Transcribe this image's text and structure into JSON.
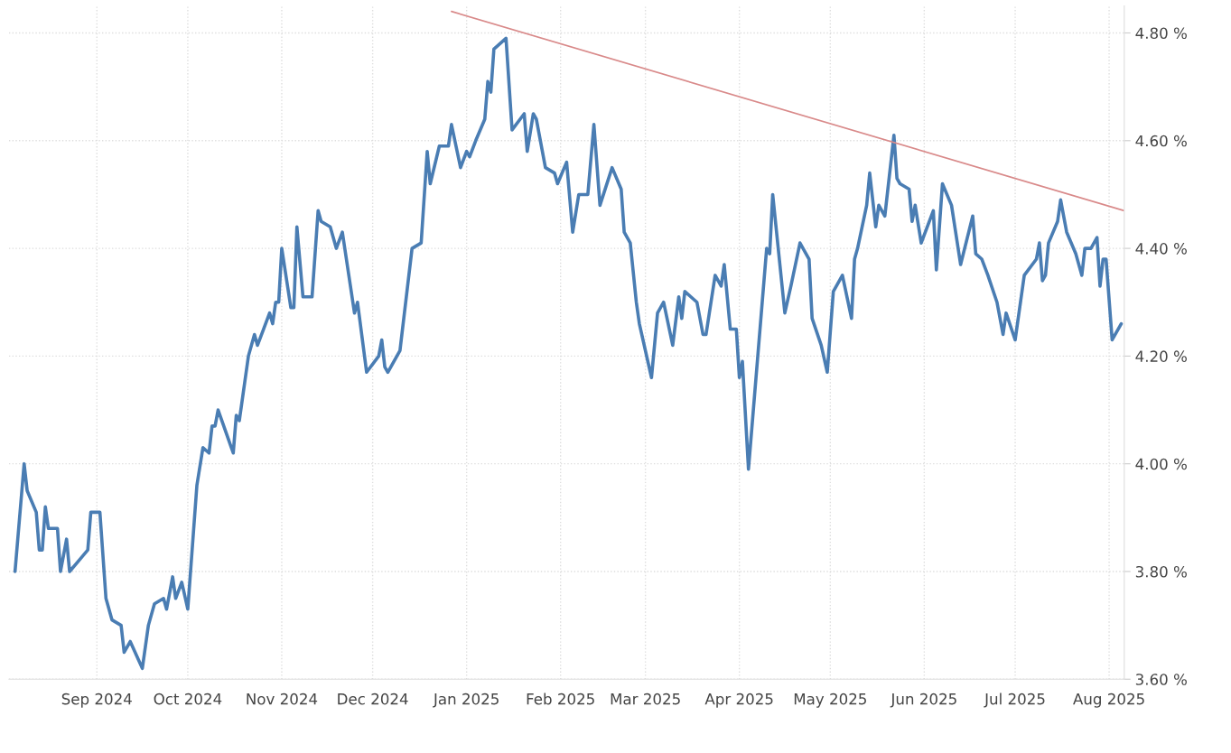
{
  "chart_data": {
    "type": "line",
    "xlim": [
      "2024-08-03",
      "2025-08-06"
    ],
    "ylim": [
      3.6,
      4.85
    ],
    "xticks": [
      {
        "value": "2024-09-01",
        "label": "Sep 2024"
      },
      {
        "value": "2024-10-01",
        "label": "Oct 2024"
      },
      {
        "value": "2024-11-01",
        "label": "Nov 2024"
      },
      {
        "value": "2024-12-01",
        "label": "Dec 2024"
      },
      {
        "value": "2025-01-01",
        "label": "Jan 2025"
      },
      {
        "value": "2025-02-01",
        "label": "Feb 2025"
      },
      {
        "value": "2025-03-01",
        "label": "Mar 2025"
      },
      {
        "value": "2025-04-01",
        "label": "Apr 2025"
      },
      {
        "value": "2025-05-01",
        "label": "May 2025"
      },
      {
        "value": "2025-06-01",
        "label": "Jun 2025"
      },
      {
        "value": "2025-07-01",
        "label": "Jul 2025"
      },
      {
        "value": "2025-08-01",
        "label": "Aug 2025"
      }
    ],
    "yticks": [
      {
        "value": 3.6,
        "label": "3.60 %"
      },
      {
        "value": 3.8,
        "label": "3.80 %"
      },
      {
        "value": 4.0,
        "label": "4.00 %"
      },
      {
        "value": 4.2,
        "label": "4.20 %"
      },
      {
        "value": 4.4,
        "label": "4.40 %"
      },
      {
        "value": 4.6,
        "label": "4.60 %"
      },
      {
        "value": 4.8,
        "label": "4.80 %"
      }
    ],
    "grid": true,
    "series": [
      {
        "color": "#4a7db3",
        "x": [
          "2024-08-05",
          "2024-08-08",
          "2024-08-09",
          "2024-08-12",
          "2024-08-13",
          "2024-08-14",
          "2024-08-15",
          "2024-08-16",
          "2024-08-19",
          "2024-08-20",
          "2024-08-22",
          "2024-08-23",
          "2024-08-26",
          "2024-08-29",
          "2024-08-30",
          "2024-09-02",
          "2024-09-04",
          "2024-09-06",
          "2024-09-09",
          "2024-09-10",
          "2024-09-12",
          "2024-09-16",
          "2024-09-18",
          "2024-09-20",
          "2024-09-23",
          "2024-09-24",
          "2024-09-26",
          "2024-09-27",
          "2024-09-29",
          "2024-10-01",
          "2024-10-04",
          "2024-10-06",
          "2024-10-08",
          "2024-10-09",
          "2024-10-10",
          "2024-10-11",
          "2024-10-16",
          "2024-10-17",
          "2024-10-18",
          "2024-10-21",
          "2024-10-23",
          "2024-10-24",
          "2024-10-26",
          "2024-10-28",
          "2024-10-29",
          "2024-10-30",
          "2024-10-31",
          "2024-11-01",
          "2024-11-04",
          "2024-11-05",
          "2024-11-06",
          "2024-11-08",
          "2024-11-11",
          "2024-11-13",
          "2024-11-14",
          "2024-11-17",
          "2024-11-19",
          "2024-11-21",
          "2024-11-25",
          "2024-11-26",
          "2024-11-29",
          "2024-12-03",
          "2024-12-04",
          "2024-12-05",
          "2024-12-06",
          "2024-12-10",
          "2024-12-14",
          "2024-12-17",
          "2024-12-19",
          "2024-12-20",
          "2024-12-23",
          "2024-12-26",
          "2024-12-27",
          "2024-12-30",
          "2025-01-01",
          "2025-01-02",
          "2025-01-04",
          "2025-01-07",
          "2025-01-08",
          "2025-01-09",
          "2025-01-10",
          "2025-01-14",
          "2025-01-16",
          "2025-01-20",
          "2025-01-21",
          "2025-01-23",
          "2025-01-24",
          "2025-01-27",
          "2025-01-30",
          "2025-01-31",
          "2025-02-03",
          "2025-02-05",
          "2025-02-07",
          "2025-02-10",
          "2025-02-12",
          "2025-02-14",
          "2025-02-18",
          "2025-02-21",
          "2025-02-22",
          "2025-02-24",
          "2025-02-26",
          "2025-02-27",
          "2025-03-03",
          "2025-03-05",
          "2025-03-07",
          "2025-03-10",
          "2025-03-12",
          "2025-03-13",
          "2025-03-14",
          "2025-03-18",
          "2025-03-20",
          "2025-03-21",
          "2025-03-24",
          "2025-03-26",
          "2025-03-27",
          "2025-03-29",
          "2025-03-31",
          "2025-04-01",
          "2025-04-02",
          "2025-04-04",
          "2025-04-10",
          "2025-04-11",
          "2025-04-12",
          "2025-04-16",
          "2025-04-18",
          "2025-04-21",
          "2025-04-24",
          "2025-04-25",
          "2025-04-28",
          "2025-04-30",
          "2025-05-02",
          "2025-05-05",
          "2025-05-08",
          "2025-05-09",
          "2025-05-10",
          "2025-05-13",
          "2025-05-14",
          "2025-05-16",
          "2025-05-17",
          "2025-05-19",
          "2025-05-22",
          "2025-05-23",
          "2025-05-24",
          "2025-05-27",
          "2025-05-28",
          "2025-05-29",
          "2025-05-31",
          "2025-06-04",
          "2025-06-05",
          "2025-06-07",
          "2025-06-10",
          "2025-06-13",
          "2025-06-17",
          "2025-06-18",
          "2025-06-20",
          "2025-06-22",
          "2025-06-25",
          "2025-06-27",
          "2025-06-28",
          "2025-07-01",
          "2025-07-04",
          "2025-07-08",
          "2025-07-09",
          "2025-07-10",
          "2025-07-11",
          "2025-07-12",
          "2025-07-15",
          "2025-07-16",
          "2025-07-17",
          "2025-07-18",
          "2025-07-21",
          "2025-07-23",
          "2025-07-24",
          "2025-07-26",
          "2025-07-28",
          "2025-07-29",
          "2025-07-30",
          "2025-07-31",
          "2025-08-02",
          "2025-08-05"
        ],
        "values": [
          3.8,
          4.0,
          3.95,
          3.91,
          3.84,
          3.84,
          3.92,
          3.88,
          3.88,
          3.8,
          3.86,
          3.8,
          3.82,
          3.84,
          3.91,
          3.91,
          3.75,
          3.71,
          3.7,
          3.65,
          3.67,
          3.62,
          3.7,
          3.74,
          3.75,
          3.73,
          3.79,
          3.75,
          3.78,
          3.73,
          3.96,
          4.03,
          4.02,
          4.07,
          4.07,
          4.1,
          4.02,
          4.09,
          4.08,
          4.2,
          4.24,
          4.22,
          4.25,
          4.28,
          4.26,
          4.3,
          4.3,
          4.4,
          4.29,
          4.29,
          4.44,
          4.31,
          4.31,
          4.47,
          4.45,
          4.44,
          4.4,
          4.43,
          4.28,
          4.3,
          4.17,
          4.2,
          4.23,
          4.18,
          4.17,
          4.21,
          4.4,
          4.41,
          4.58,
          4.52,
          4.59,
          4.59,
          4.63,
          4.55,
          4.58,
          4.57,
          4.6,
          4.64,
          4.71,
          4.69,
          4.77,
          4.79,
          4.62,
          4.65,
          4.58,
          4.65,
          4.64,
          4.55,
          4.54,
          4.52,
          4.56,
          4.43,
          4.5,
          4.5,
          4.63,
          4.48,
          4.55,
          4.51,
          4.43,
          4.41,
          4.3,
          4.26,
          4.16,
          4.28,
          4.3,
          4.22,
          4.31,
          4.27,
          4.32,
          4.3,
          4.24,
          4.24,
          4.35,
          4.33,
          4.37,
          4.25,
          4.25,
          4.16,
          4.19,
          3.99,
          4.4,
          4.39,
          4.5,
          4.28,
          4.33,
          4.41,
          4.38,
          4.27,
          4.22,
          4.17,
          4.32,
          4.35,
          4.27,
          4.38,
          4.4,
          4.48,
          4.54,
          4.44,
          4.48,
          4.46,
          4.61,
          4.53,
          4.52,
          4.51,
          4.45,
          4.48,
          4.41,
          4.47,
          4.36,
          4.52,
          4.48,
          4.37,
          4.46,
          4.39,
          4.38,
          4.35,
          4.3,
          4.24,
          4.28,
          4.23,
          4.35,
          4.38,
          4.41,
          4.34,
          4.35,
          4.41,
          4.45,
          4.49,
          4.46,
          4.43,
          4.39,
          4.35,
          4.4,
          4.4,
          4.42,
          4.33,
          4.38,
          4.38,
          4.23,
          4.26
        ]
      },
      {
        "color": "#d98a8a",
        "x": [
          "2024-12-27",
          "2025-08-06"
        ],
        "values": [
          4.84,
          4.47
        ]
      }
    ]
  }
}
